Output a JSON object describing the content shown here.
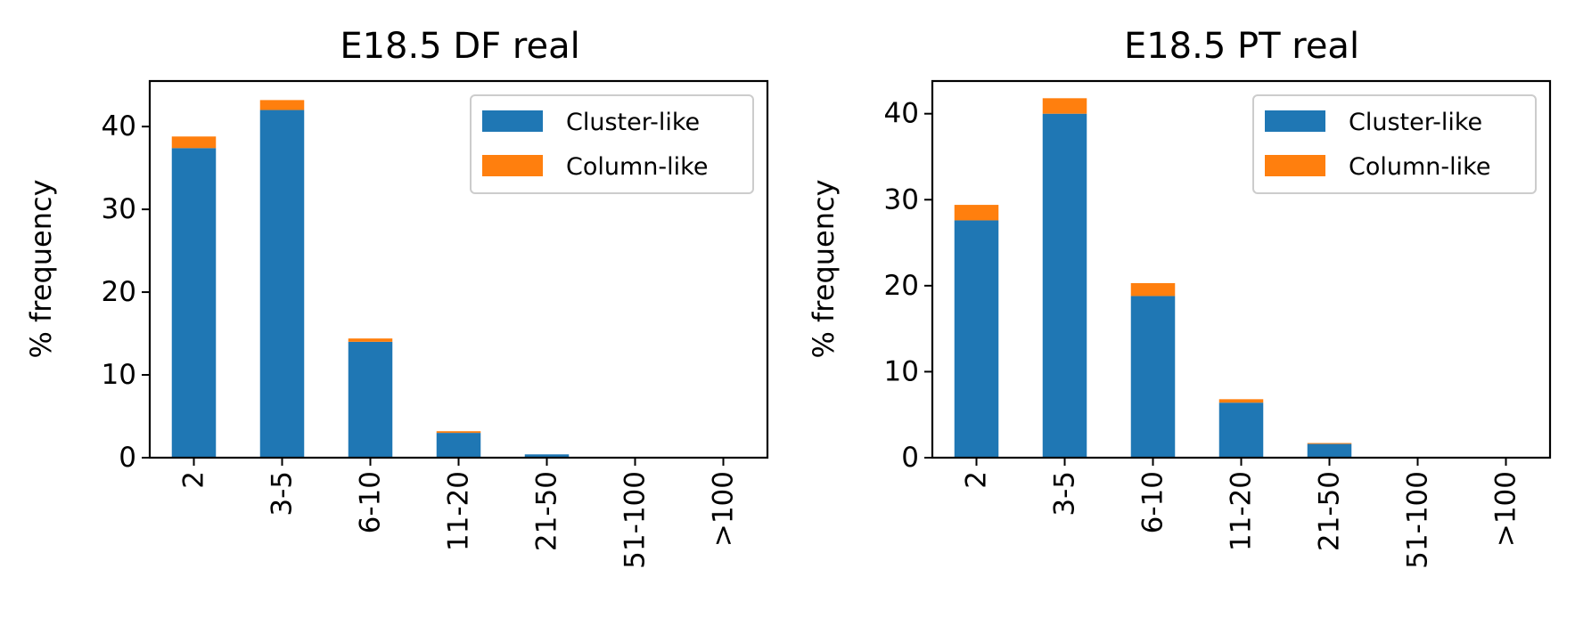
{
  "chart_data": [
    {
      "type": "bar",
      "stacked": true,
      "title": "E18.5 DF real",
      "ylabel": "% frequency",
      "xlabel": "",
      "categories": [
        "2",
        "3-5",
        "6-10",
        "11-20",
        "21-50",
        "51-100",
        ">100"
      ],
      "ylim": [
        0,
        45.5
      ],
      "yticks": [
        0,
        10,
        20,
        30,
        40
      ],
      "series": [
        {
          "name": "Cluster-like",
          "color": "#1f77b4",
          "values": [
            37.4,
            42.0,
            14.0,
            3.0,
            0.4,
            0,
            0
          ]
        },
        {
          "name": "Column-like",
          "color": "#ff7f0e",
          "values": [
            1.4,
            1.2,
            0.4,
            0.2,
            0,
            0,
            0
          ]
        }
      ],
      "legend": "top-right",
      "grid": false
    },
    {
      "type": "bar",
      "stacked": true,
      "title": "E18.5 PT real",
      "ylabel": "% frequency",
      "xlabel": "",
      "categories": [
        "2",
        "3-5",
        "6-10",
        "11-20",
        "21-50",
        "51-100",
        ">100"
      ],
      "ylim": [
        0,
        43.8
      ],
      "yticks": [
        0,
        10,
        20,
        30,
        40
      ],
      "series": [
        {
          "name": "Cluster-like",
          "color": "#1f77b4",
          "values": [
            27.6,
            40.0,
            18.8,
            6.4,
            1.6,
            0,
            0
          ]
        },
        {
          "name": "Column-like",
          "color": "#ff7f0e",
          "values": [
            1.8,
            1.8,
            1.5,
            0.4,
            0.1,
            0,
            0
          ]
        }
      ],
      "legend": "top-right",
      "grid": false
    }
  ]
}
